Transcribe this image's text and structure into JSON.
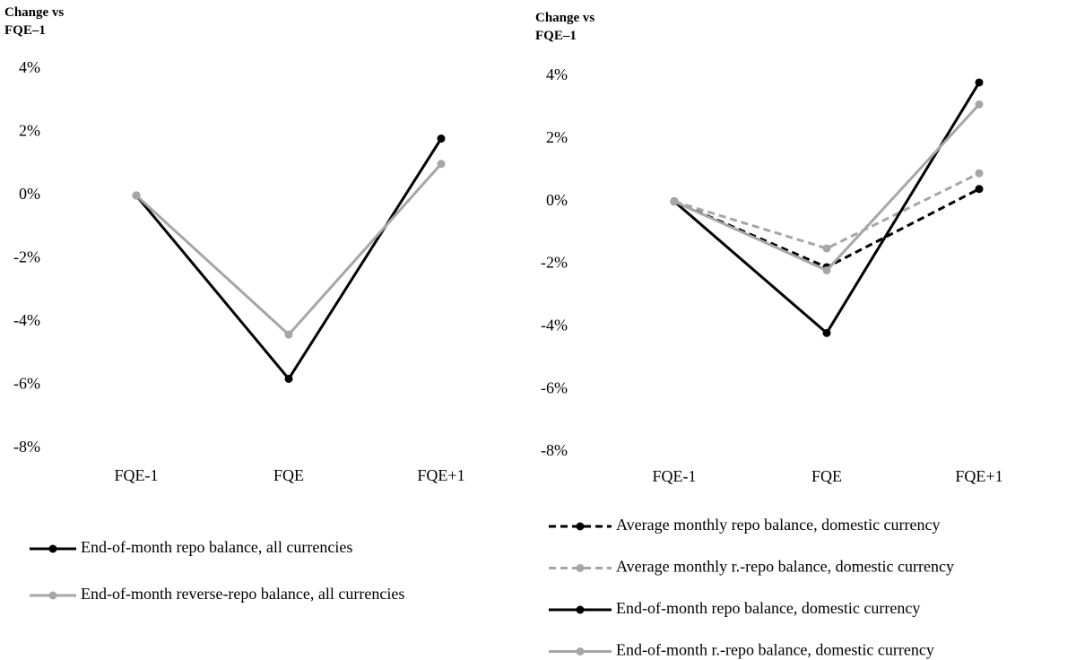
{
  "chart_data": [
    {
      "type": "line",
      "y_label": "Change vs FQE–1",
      "categories": [
        "FQE-1",
        "FQE",
        "FQE+1"
      ],
      "ylim": [
        -8,
        4
      ],
      "yticks": [
        {
          "value": -8,
          "label": "-8%"
        },
        {
          "value": -6,
          "label": "-6%"
        },
        {
          "value": -4,
          "label": "-4%"
        },
        {
          "value": -2,
          "label": "-2%"
        },
        {
          "value": 0,
          "label": "0%"
        },
        {
          "value": 2,
          "label": "2%"
        },
        {
          "value": 4,
          "label": "4%"
        }
      ],
      "series": [
        {
          "name": "End-of-month repo balance, all currencies",
          "color": "#000000",
          "dashed": false,
          "values": [
            0,
            -5.8,
            1.8
          ]
        },
        {
          "name": "End-of-month reverse-repo balance, all currencies",
          "color": "#a6a6a6",
          "dashed": false,
          "values": [
            0,
            -4.4,
            1.0
          ]
        }
      ]
    },
    {
      "type": "line",
      "y_label": "Change vs FQE–1",
      "categories": [
        "FQE-1",
        "FQE",
        "FQE+1"
      ],
      "ylim": [
        -8,
        4
      ],
      "yticks": [
        {
          "value": -8,
          "label": "-8%"
        },
        {
          "value": -6,
          "label": "-6%"
        },
        {
          "value": -4,
          "label": "-4%"
        },
        {
          "value": -2,
          "label": "-2%"
        },
        {
          "value": 0,
          "label": "0%"
        },
        {
          "value": 2,
          "label": "2%"
        },
        {
          "value": 4,
          "label": "4%"
        }
      ],
      "series": [
        {
          "name": "Average monthly repo balance, domestic currency",
          "color": "#000000",
          "dashed": true,
          "values": [
            0,
            -2.1,
            0.4
          ]
        },
        {
          "name": "Average monthly r.-repo balance, domestic currency",
          "color": "#a6a6a6",
          "dashed": true,
          "values": [
            0,
            -1.5,
            0.9
          ]
        },
        {
          "name": "End-of-month repo balance, domestic currency",
          "color": "#000000",
          "dashed": false,
          "values": [
            0,
            -4.2,
            3.8
          ]
        },
        {
          "name": "End-of-month r.-repo balance, domestic currency",
          "color": "#a6a6a6",
          "dashed": false,
          "values": [
            0,
            -2.2,
            3.1
          ]
        }
      ]
    }
  ]
}
